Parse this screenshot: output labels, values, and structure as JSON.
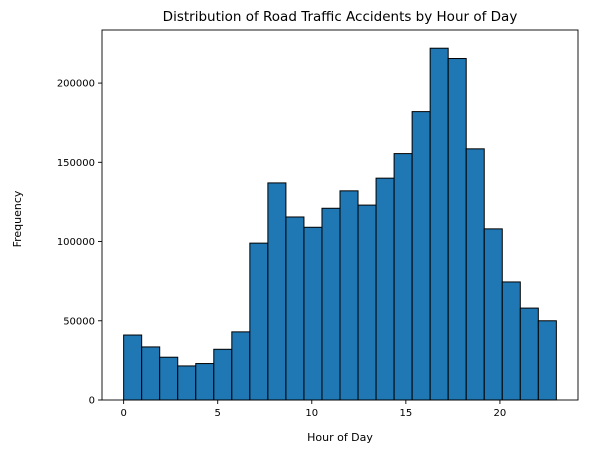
{
  "chart_data": {
    "type": "bar",
    "title": "Distribution of Road Traffic Accidents by Hour of Day",
    "xlabel": "Hour of Day",
    "ylabel": "Frequency",
    "bin_edges": [
      0,
      0.9583,
      1.9167,
      2.875,
      3.8333,
      4.7917,
      5.75,
      6.7083,
      7.6667,
      8.625,
      9.5833,
      10.5417,
      11.5,
      12.4583,
      13.4167,
      14.375,
      15.3333,
      16.2917,
      17.25,
      18.2083,
      19.1667,
      20.125,
      21.0833,
      22.0417,
      23
    ],
    "values": [
      41000,
      33500,
      27000,
      21500,
      23000,
      32000,
      43000,
      99000,
      137000,
      115500,
      109000,
      121000,
      132000,
      123000,
      140000,
      155500,
      182000,
      222000,
      215500,
      158500,
      108000,
      74500,
      58000,
      50000
    ],
    "xlim": [
      -1.15,
      24.15
    ],
    "ylim": [
      0,
      233500
    ],
    "xticks": [
      0,
      5,
      10,
      15,
      20
    ],
    "xtick_labels": [
      "0",
      "5",
      "10",
      "15",
      "20"
    ],
    "yticks": [
      0,
      50000,
      100000,
      150000,
      200000
    ],
    "ytick_labels": [
      "0",
      "50000",
      "100000",
      "150000",
      "200000"
    ],
    "bar_color": "#1f77b4",
    "edge_color": "#000000",
    "grid": false
  }
}
